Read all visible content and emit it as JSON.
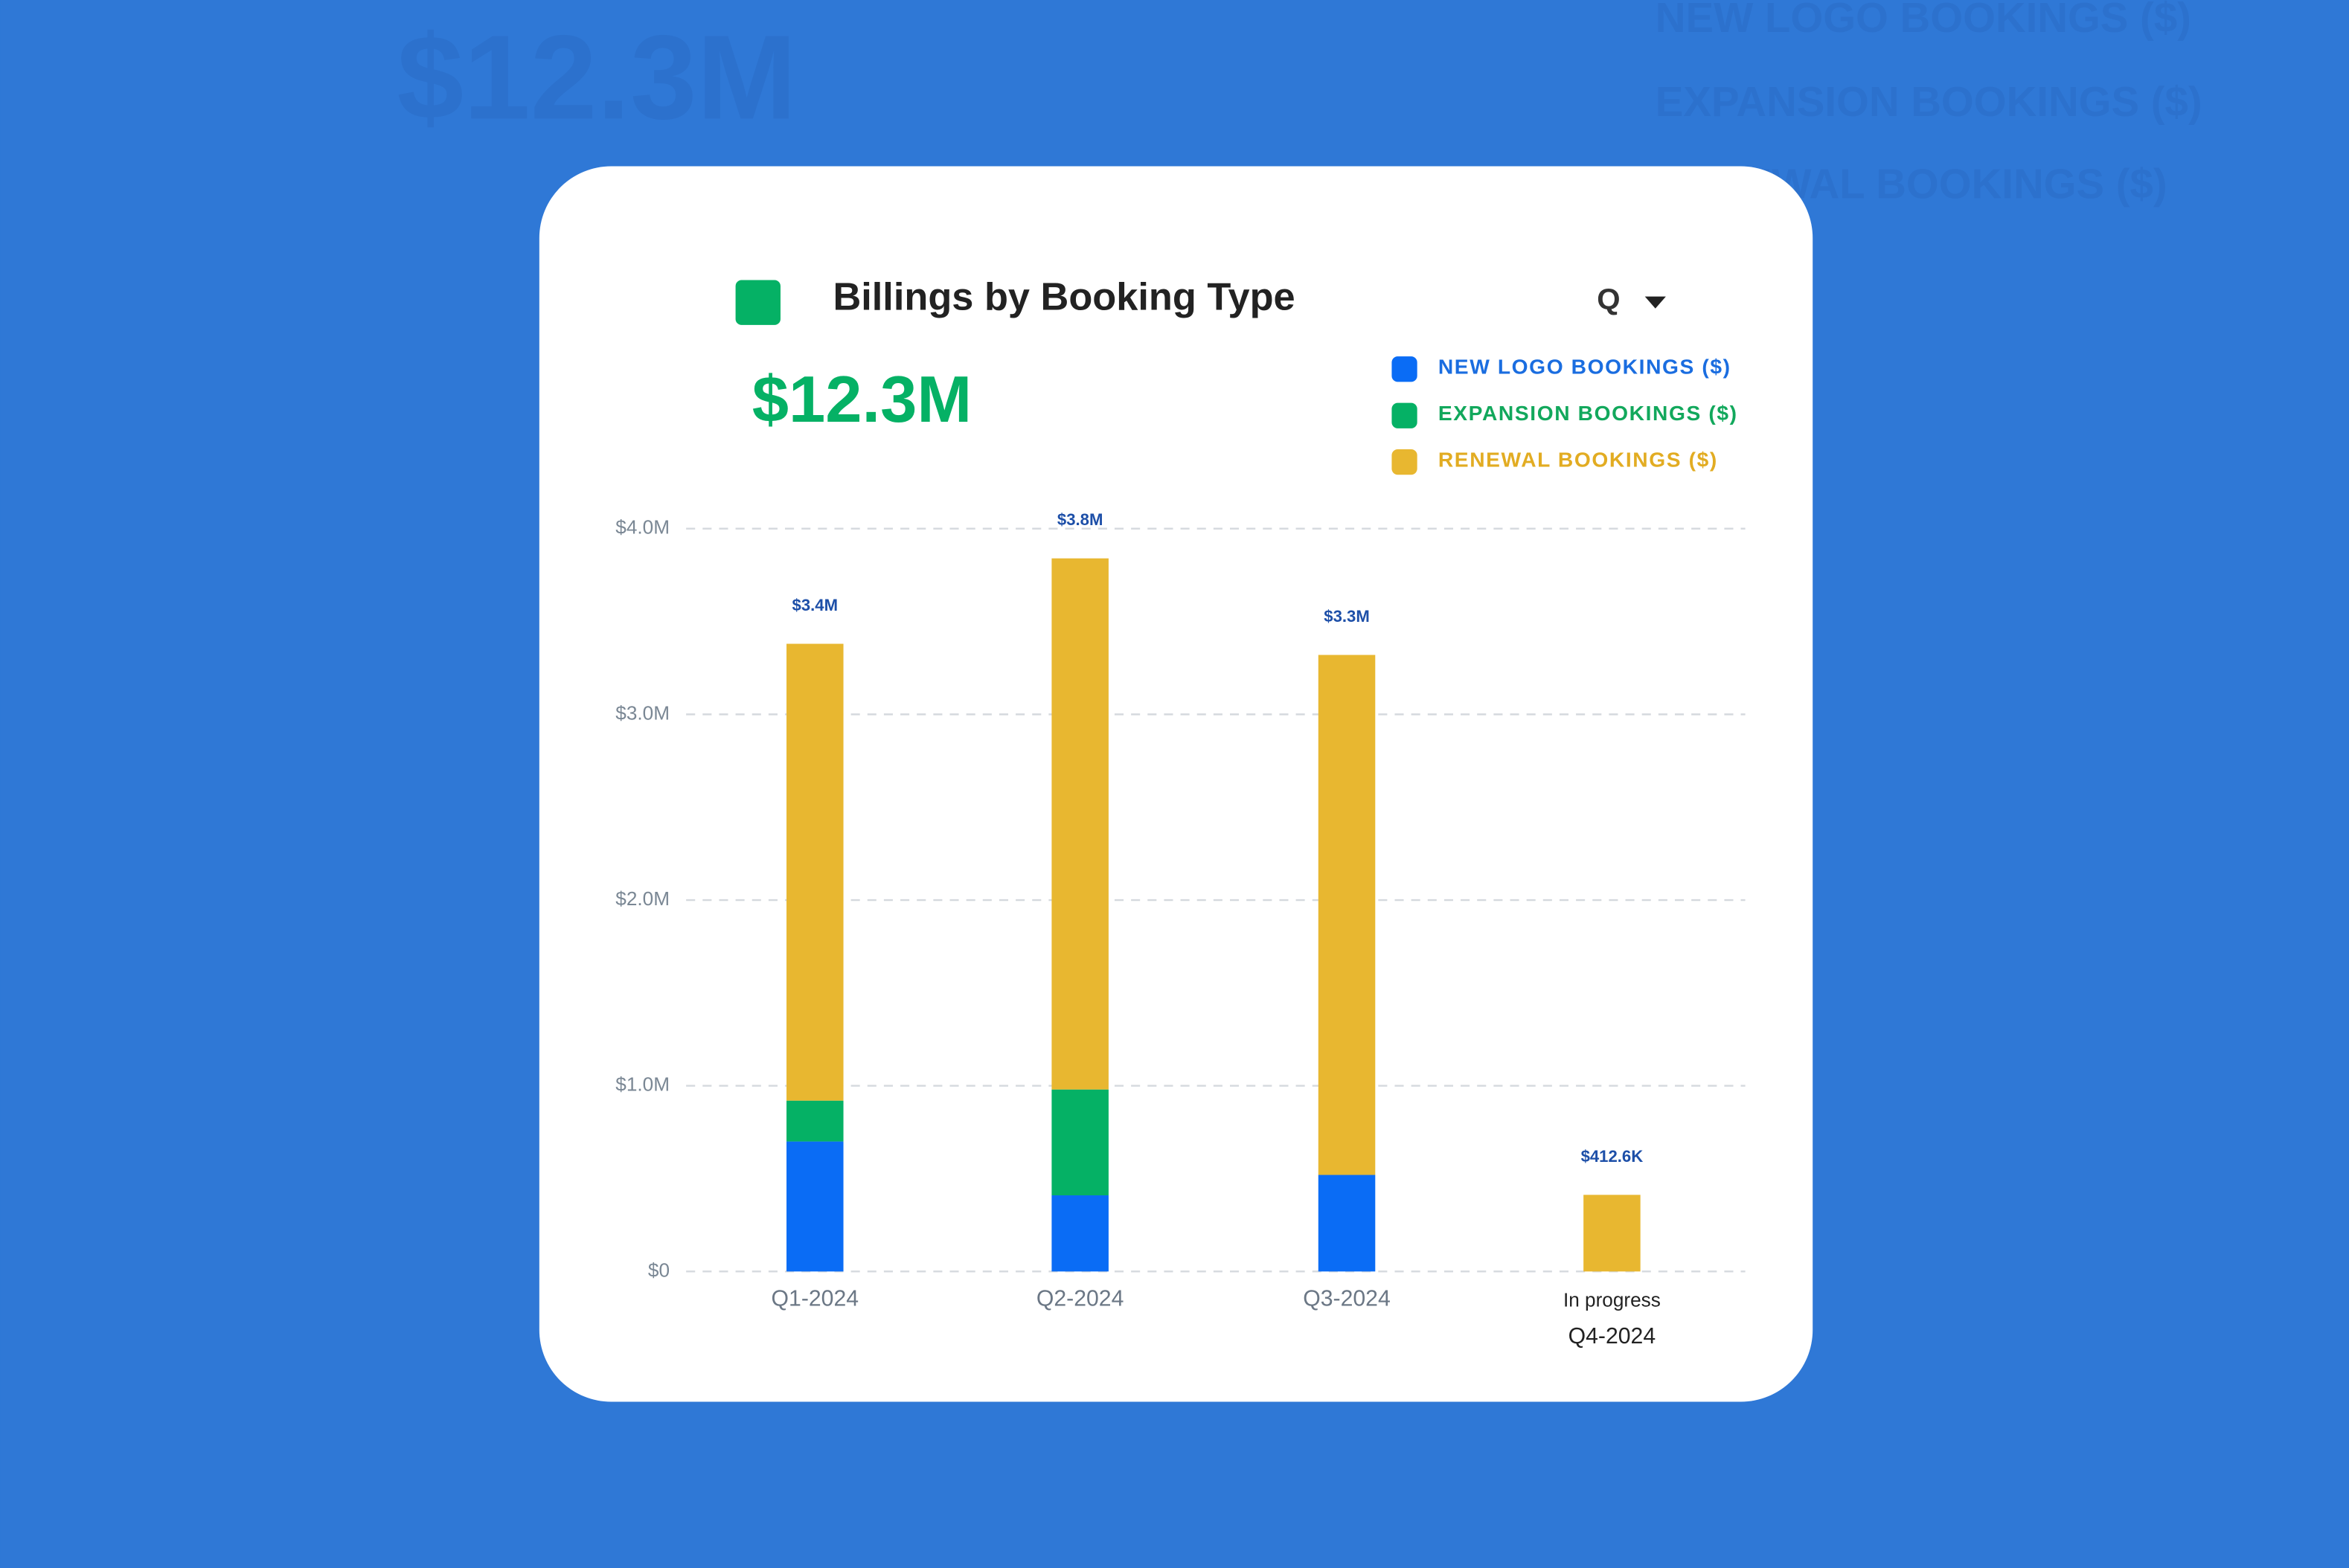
{
  "chart_data": {
    "type": "stacked-bar",
    "title": "Billings by Booking Type",
    "period_selector": "Q",
    "kpi": "$12.3M",
    "categories": [
      "Q1-2024",
      "Q2-2024",
      "Q3-2024",
      "Q4-2024"
    ],
    "annotations": [
      {
        "category": "Q4-2024",
        "text": "In progress"
      }
    ],
    "series": [
      {
        "name": "NEW LOGO BOOKINGS ($)",
        "color": "#0a6cf5",
        "values": [
          0.7,
          0.41,
          0.52,
          0
        ]
      },
      {
        "name": "EXPANSION BOOKINGS ($)",
        "color": "#05b165",
        "values": [
          0.22,
          0.57,
          0,
          0
        ]
      },
      {
        "name": "RENEWAL BOOKINGS ($)",
        "color": "#e8b730",
        "values": [
          2.46,
          2.86,
          2.8,
          0.4126
        ]
      }
    ],
    "totals": {
      "values": [
        3.38,
        3.84,
        3.32,
        0.4126
      ],
      "value_labels": [
        "$3.4M",
        "$3.8M",
        "$3.3M",
        "$412.6K"
      ]
    },
    "ylim": [
      0,
      4
    ],
    "yticks": [
      {
        "value": 0,
        "label": "$0"
      },
      {
        "value": 1,
        "label": "$1.0M"
      },
      {
        "value": 2,
        "label": "$2.0M"
      },
      {
        "value": 3,
        "label": "$3.0M"
      },
      {
        "value": 4,
        "label": "$4.0M"
      }
    ],
    "grid": true
  }
}
